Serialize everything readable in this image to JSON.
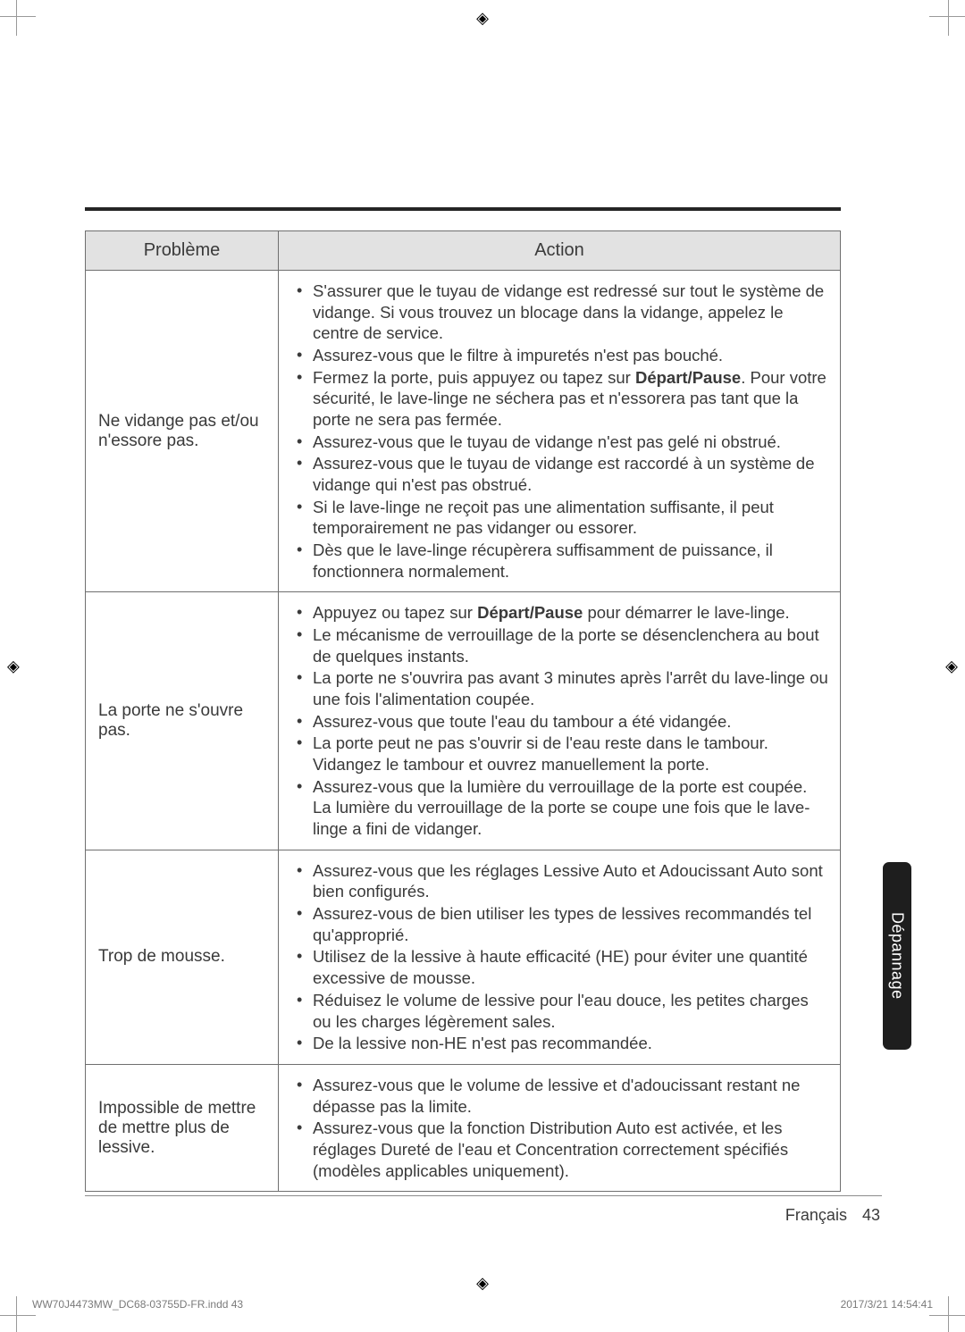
{
  "headers": {
    "problem": "Problème",
    "action": "Action"
  },
  "rows": [
    {
      "problem": "Ne vidange pas et/ou n'essore pas.",
      "actions": [
        [
          {
            "t": "S'assurer que le tuyau de vidange est redressé sur tout le système de vidange. Si vous trouvez un blocage dans la vidange, appelez le centre de service."
          }
        ],
        [
          {
            "t": "Assurez-vous que le filtre à impuretés n'est pas bouché."
          }
        ],
        [
          {
            "t": "Fermez la porte, puis appuyez ou tapez sur "
          },
          {
            "t": "Départ/Pause",
            "b": true
          },
          {
            "t": ". Pour votre sécurité, le lave-linge ne séchera pas et n'essorera pas tant que la porte ne sera pas fermée."
          }
        ],
        [
          {
            "t": "Assurez-vous que le tuyau de vidange n'est pas gelé ni obstrué."
          }
        ],
        [
          {
            "t": "Assurez-vous que le tuyau de vidange est raccordé à un système de vidange qui n'est pas obstrué."
          }
        ],
        [
          {
            "t": "Si le lave-linge ne reçoit pas une alimentation suffisante, il peut temporairement ne pas vidanger ou essorer."
          }
        ],
        [
          {
            "t": "Dès que le lave-linge récupèrera suffisamment de puissance, il fonctionnera normalement."
          }
        ]
      ]
    },
    {
      "problem": "La porte ne s'ouvre pas.",
      "actions": [
        [
          {
            "t": "Appuyez ou tapez sur "
          },
          {
            "t": "Départ/Pause",
            "b": true
          },
          {
            "t": " pour démarrer le lave-linge."
          }
        ],
        [
          {
            "t": "Le mécanisme de verrouillage de la porte se désenclenchera au bout de quelques instants."
          }
        ],
        [
          {
            "t": "La porte ne s'ouvrira pas avant 3 minutes après l'arrêt du lave-linge ou une fois l'alimentation coupée."
          }
        ],
        [
          {
            "t": "Assurez-vous que toute l'eau du tambour a été vidangée."
          }
        ],
        [
          {
            "t": "La porte peut ne pas s'ouvrir si de l'eau reste dans le tambour. Vidangez le tambour et ouvrez manuellement la porte."
          }
        ],
        [
          {
            "t": "Assurez-vous que la lumière du verrouillage de la porte est coupée. La lumière du verrouillage de la porte se coupe une fois que le lave-linge a fini de vidanger."
          }
        ]
      ]
    },
    {
      "problem": "Trop de mousse.",
      "actions": [
        [
          {
            "t": "Assurez-vous que les réglages Lessive Auto et Adoucissant Auto sont bien configurés."
          }
        ],
        [
          {
            "t": "Assurez-vous de bien utiliser les types de lessives recommandés tel qu'approprié."
          }
        ],
        [
          {
            "t": "Utilisez de la lessive à haute efficacité (HE) pour éviter une quantité excessive de mousse."
          }
        ],
        [
          {
            "t": "Réduisez le volume de lessive pour l'eau douce, les petites charges ou les charges légèrement sales."
          }
        ],
        [
          {
            "t": "De la lessive non-HE n'est pas recommandée."
          }
        ]
      ]
    },
    {
      "problem": "Impossible de mettre de mettre plus de lessive.",
      "actions": [
        [
          {
            "t": "Assurez-vous que le volume de lessive et d'adoucissant restant ne dépasse pas la limite."
          }
        ],
        [
          {
            "t": "Assurez-vous que la fonction Distribution Auto est activée, et les réglages Dureté de l'eau et Concentration correctement spécifiés (modèles applicables uniquement)."
          }
        ]
      ]
    }
  ],
  "sidetab": "Dépannage",
  "footer": {
    "lang": "Français",
    "page": "43"
  },
  "imprint": {
    "left": "WW70J4473MW_DC68-03755D-FR.indd   43",
    "right": "2017/3/21   14:54:41"
  }
}
